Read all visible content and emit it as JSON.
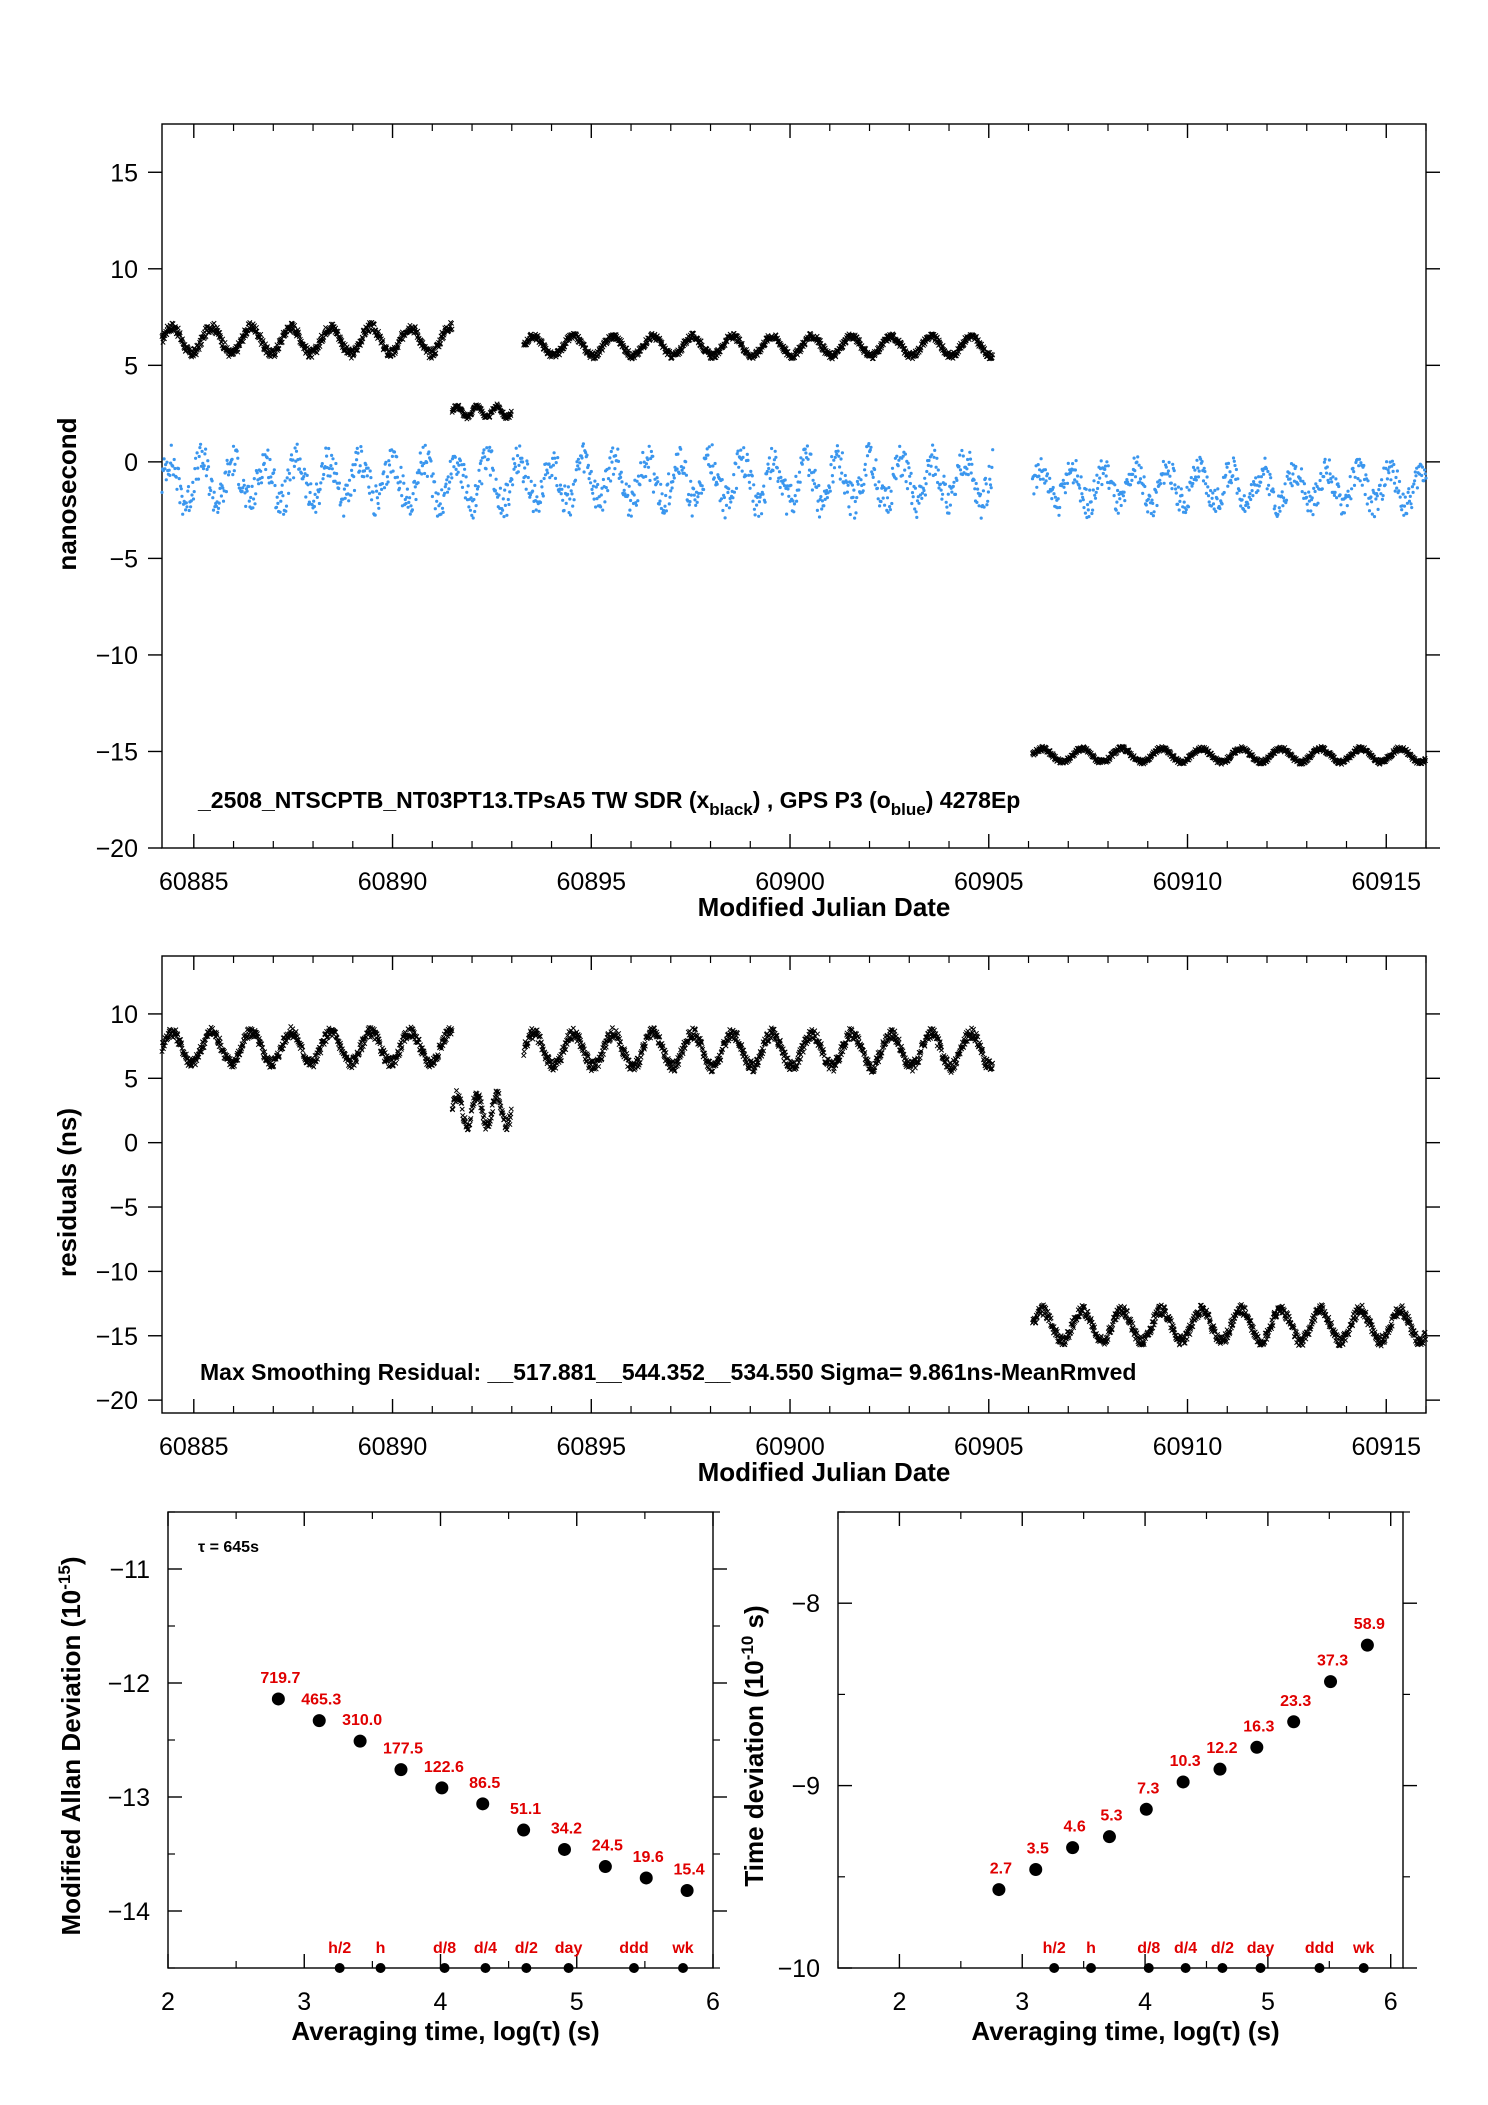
{
  "chart_data": [
    {
      "type": "scatter",
      "xlabel": "Modified Julian Date",
      "ylabel": "nanosecond",
      "xlim": [
        60884.2,
        60916.0
      ],
      "ylim": [
        -20,
        17.5
      ],
      "xticks": [
        60885,
        60890,
        60895,
        60900,
        60905,
        60910,
        60915
      ],
      "yticks": [
        15,
        10,
        5,
        0,
        -5,
        -10,
        -15,
        -20
      ],
      "annotation": {
        "prefix": "_2508_NTSCPTB_NT03PT13.TPsA5     TW SDR (x",
        "sub1": "black",
        "middle": ") ,  GPS P3 (o",
        "sub2": "blue",
        "suffix": ")  4278Ep"
      },
      "series": [
        {
          "marker": "x",
          "color": "#000000",
          "segments": [
            {
              "x": [
                60884.2,
                60891.5
              ],
              "base": 6.3,
              "amp": 0.7,
              "period": 1.0
            },
            {
              "x": [
                60891.5,
                60893.0
              ],
              "base": 2.6,
              "amp": 0.3,
              "period": 0.5
            },
            {
              "x": [
                60893.3,
                60905.1
              ],
              "base": 6.0,
              "amp": 0.5,
              "period": 1.0
            },
            {
              "x": [
                60906.1,
                60916.0
              ],
              "base": -15.2,
              "amp": 0.35,
              "period": 1.0
            }
          ]
        },
        {
          "marker": "o",
          "color": "#3a96ee",
          "segments": [
            {
              "x": [
                60884.2,
                60905.1
              ],
              "base": -1.0,
              "amp": 1.1,
              "period": 0.8
            },
            {
              "x": [
                60906.1,
                60916.0
              ],
              "base": -1.3,
              "amp": 0.9,
              "period": 0.8
            }
          ]
        }
      ]
    },
    {
      "type": "scatter",
      "xlabel": "Modified Julian Date",
      "ylabel": "residuals (ns)",
      "xlim": [
        60884.2,
        60916.0
      ],
      "ylim": [
        -21,
        14.5
      ],
      "xticks": [
        60885,
        60890,
        60895,
        60900,
        60905,
        60910,
        60915
      ],
      "yticks": [
        10,
        5,
        0,
        -5,
        -10,
        -15,
        -20
      ],
      "annotation": "Max Smoothing Residual: __517.881__544.352__534.550  Sigma= 9.861ns-MeanRmved",
      "series": [
        {
          "marker": "x",
          "color": "#000000",
          "segments": [
            {
              "x": [
                60884.2,
                60891.5
              ],
              "base": 7.4,
              "amp": 1.2,
              "period": 1.0
            },
            {
              "x": [
                60891.5,
                60893.0
              ],
              "base": 2.5,
              "amp": 1.2,
              "period": 0.5
            },
            {
              "x": [
                60893.3,
                60905.1
              ],
              "base": 7.2,
              "amp": 1.3,
              "period": 1.0
            },
            {
              "x": [
                60906.1,
                60916.0
              ],
              "base": -14.2,
              "amp": 1.2,
              "period": 1.0
            }
          ]
        }
      ]
    },
    {
      "type": "scatter",
      "xlabel": "Averaging time, log(τ) (s)",
      "ylabel": "Modified Allan Deviation (10",
      "ylabel_sup": "-15",
      "ylabel_suffix": ")",
      "tau_label": "τ = 645s",
      "xlim": [
        2,
        6
      ],
      "ylim": [
        -14.5,
        -10.5
      ],
      "xticks": [
        2,
        3,
        4,
        5,
        6
      ],
      "yticks": [
        -11,
        -12,
        -13,
        -14
      ],
      "x": [
        2.81,
        3.11,
        3.41,
        3.71,
        4.01,
        4.31,
        4.61,
        4.91,
        5.21,
        5.51,
        5.81
      ],
      "y": [
        -12.14,
        -12.33,
        -12.51,
        -12.76,
        -12.92,
        -13.06,
        -13.29,
        -13.46,
        -13.61,
        -13.71,
        -13.82
      ],
      "labels": [
        "719.7",
        "465.3",
        "310.0",
        "177.5",
        "122.6",
        "86.5",
        "51.1",
        "34.2",
        "24.5",
        "19.6",
        "15.4"
      ],
      "markers": [
        {
          "x": 3.26,
          "label": "h/2"
        },
        {
          "x": 3.56,
          "label": "h"
        },
        {
          "x": 4.03,
          "label": "d/8"
        },
        {
          "x": 4.33,
          "label": "d/4"
        },
        {
          "x": 4.63,
          "label": "d/2"
        },
        {
          "x": 4.94,
          "label": "day"
        },
        {
          "x": 5.42,
          "label": "ddd"
        },
        {
          "x": 5.78,
          "label": "wk"
        }
      ]
    },
    {
      "type": "scatter",
      "xlabel": "Averaging time, log(τ) (s)",
      "ylabel": "Time deviation (10",
      "ylabel_sup": "-10",
      "ylabel_suffix": " s)",
      "xlim": [
        1.5,
        6.1
      ],
      "ylim": [
        -10,
        -7.5
      ],
      "xticks": [
        2,
        3,
        4,
        5,
        6
      ],
      "yticks": [
        -8,
        -9,
        -10
      ],
      "x": [
        2.81,
        3.11,
        3.41,
        3.71,
        4.01,
        4.31,
        4.61,
        4.91,
        5.21,
        5.51,
        5.81
      ],
      "y": [
        -9.57,
        -9.46,
        -9.34,
        -9.28,
        -9.13,
        -8.98,
        -8.91,
        -8.79,
        -8.65,
        -8.43,
        -8.23
      ],
      "labels": [
        "2.7",
        "3.5",
        "4.6",
        "5.3",
        "7.3",
        "10.3",
        "12.2",
        "16.3",
        "23.3",
        "37.3",
        "58.9"
      ],
      "markers": [
        {
          "x": 3.26,
          "label": "h/2"
        },
        {
          "x": 3.56,
          "label": "h"
        },
        {
          "x": 4.03,
          "label": "d/8"
        },
        {
          "x": 4.33,
          "label": "d/4"
        },
        {
          "x": 4.63,
          "label": "d/2"
        },
        {
          "x": 4.94,
          "label": "day"
        },
        {
          "x": 5.42,
          "label": "ddd"
        },
        {
          "x": 5.78,
          "label": "wk"
        }
      ]
    }
  ]
}
